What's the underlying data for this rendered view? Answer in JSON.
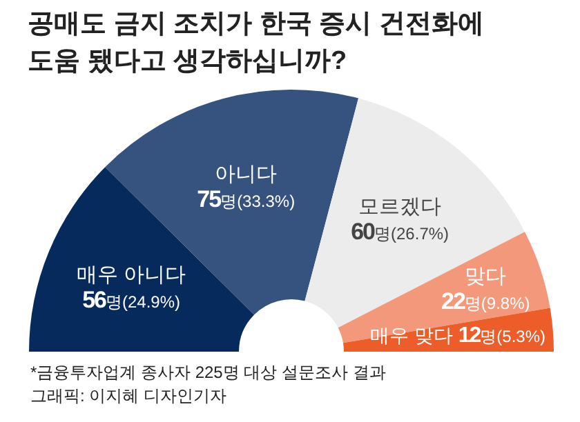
{
  "chart_data": {
    "type": "donut",
    "title": "공매도 금지 조치가 한국 증시 건전화에 도움 됐다고 생각하십니까?",
    "categories": [
      "매우 아니다",
      "아니다",
      "모르겠다",
      "맞다",
      "매우 맞다"
    ],
    "values": [
      56,
      75,
      60,
      22,
      12
    ],
    "colors": [
      "#062a5c",
      "#36527e",
      "#ececec",
      "#f3987a",
      "#ec5d2a"
    ],
    "value_labels": [
      "**56**명(24.9%)",
      "**75**명(33.3%)",
      "**60**명(26.7%)",
      "**22**명(9.8%)",
      "**12**명(5.3%)"
    ],
    "annotations": [
      "*금융투자업계 종사자 225명 대상 설문조사 결과",
      "그래픽: 이지혜 디자인기자"
    ]
  }
}
